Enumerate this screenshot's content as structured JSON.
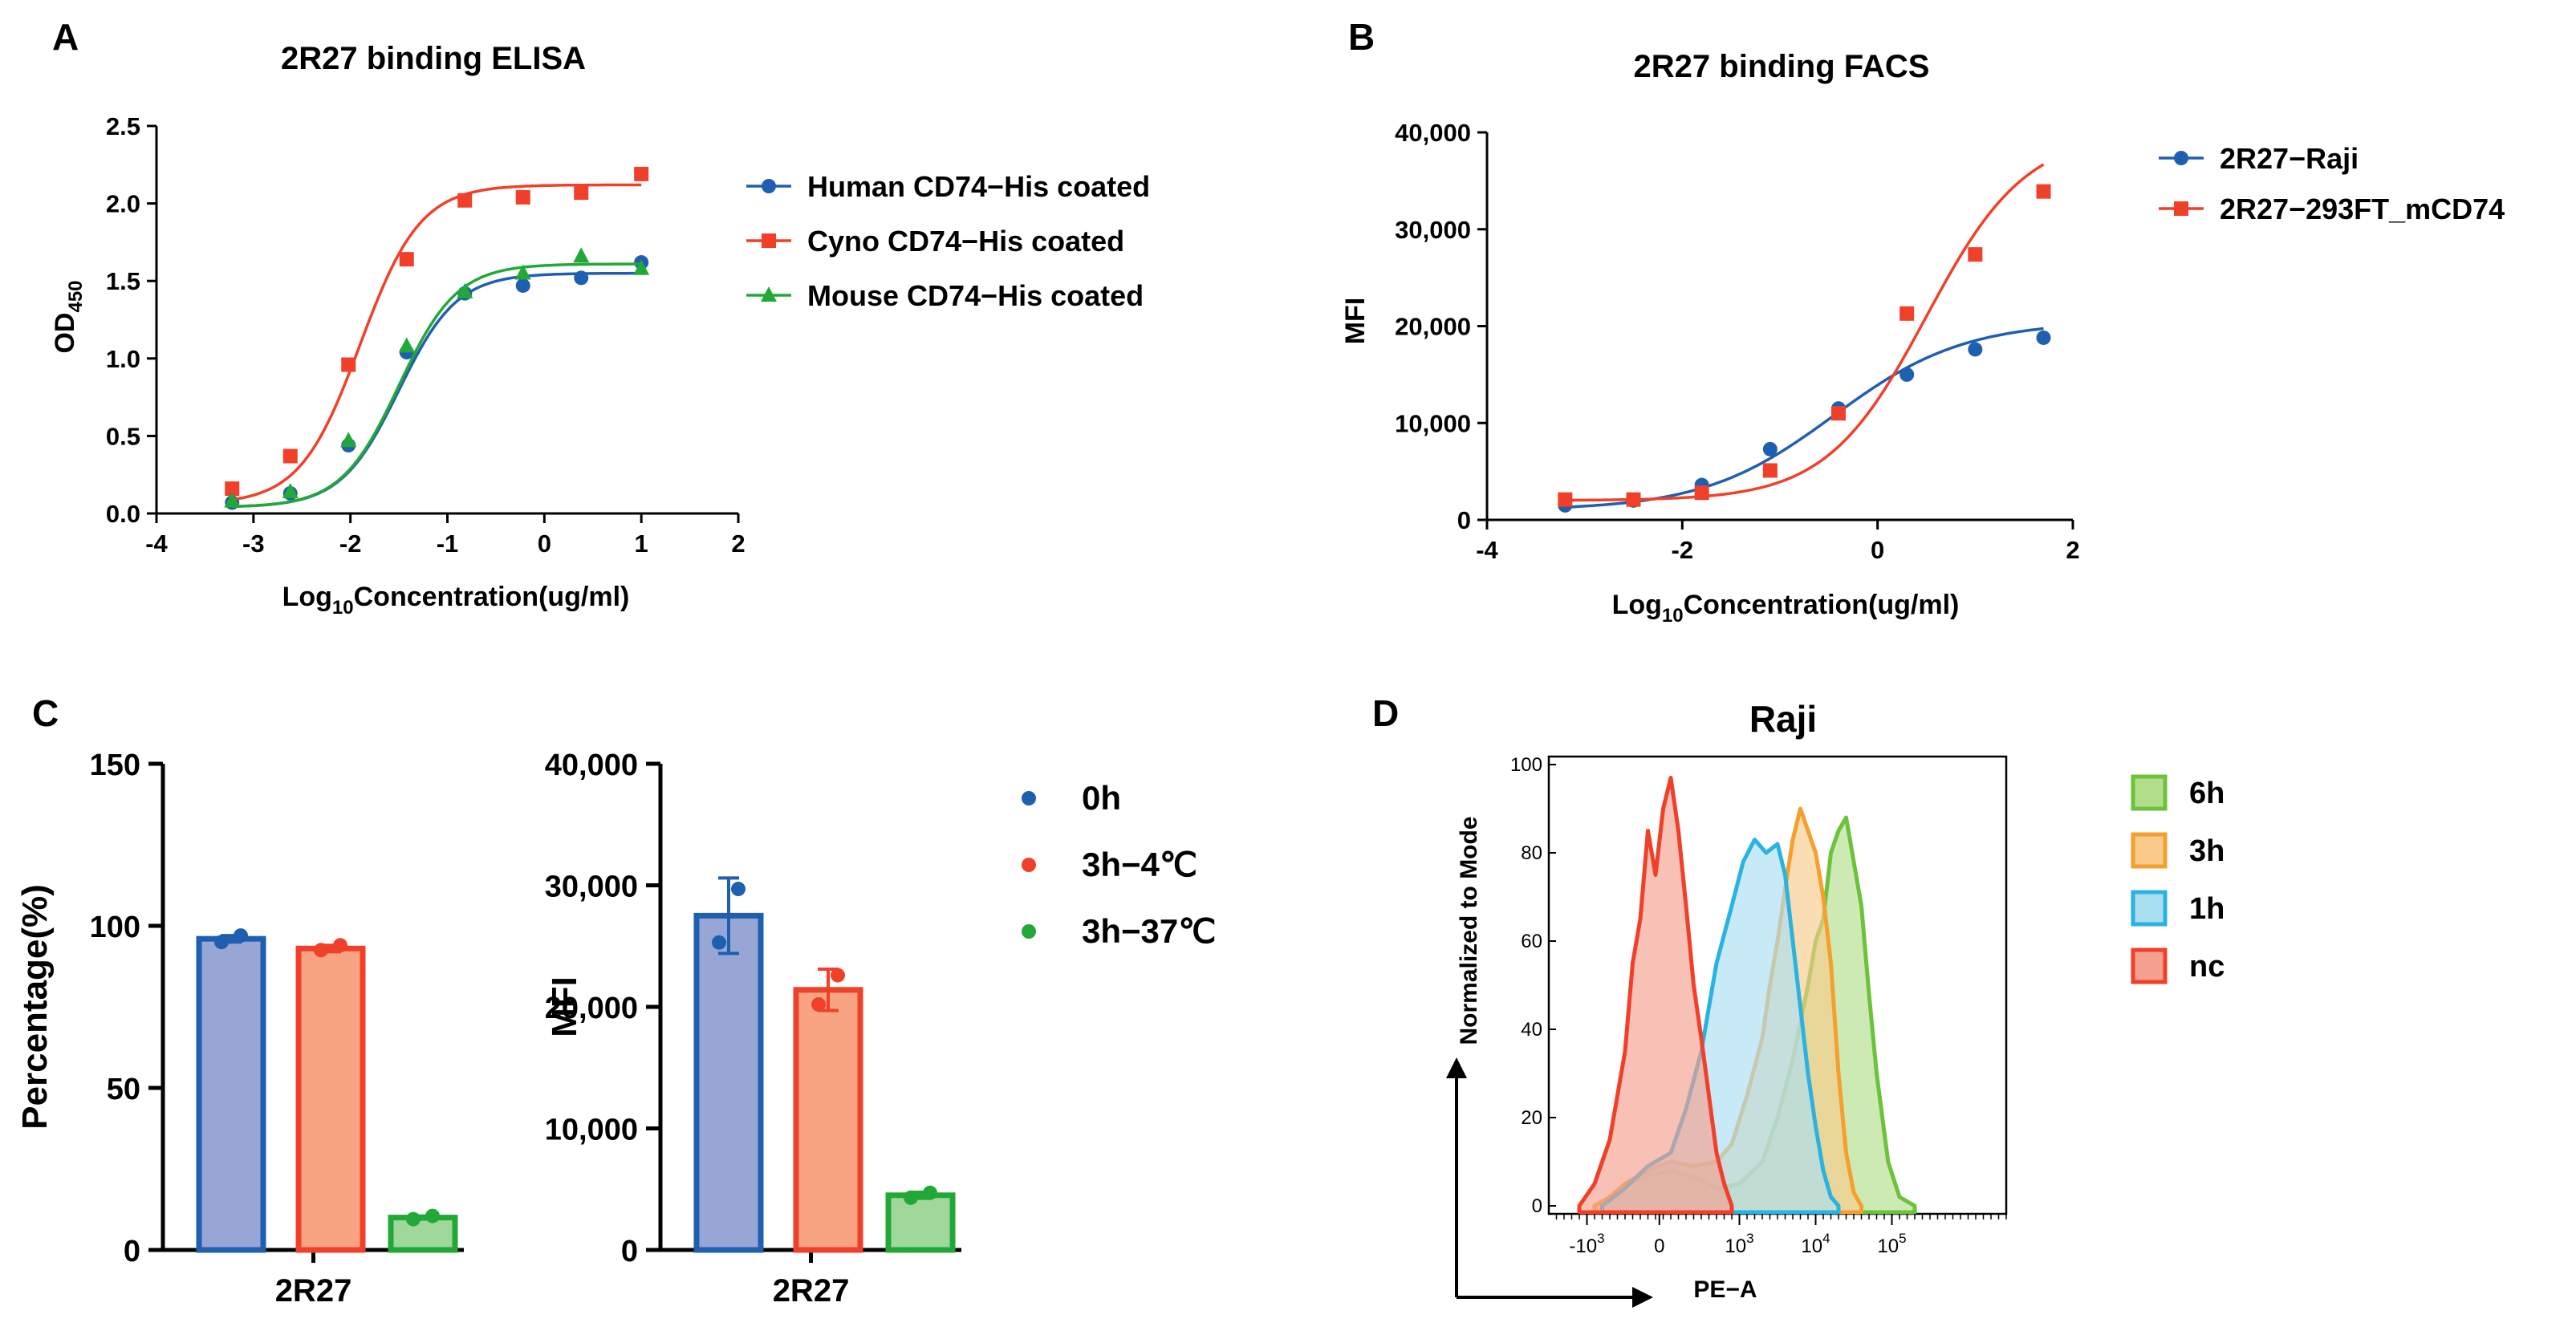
{
  "chart_data": [
    {
      "panel": "A",
      "type": "line",
      "title": "2R27 binding ELISA",
      "xlabel": {
        "pre": "Log",
        "sub": "10",
        "post": "Concentration(ug/ml)"
      },
      "ylabel": {
        "pre": "OD",
        "sub": "450"
      },
      "xlim": [
        -4,
        2
      ],
      "ylim": [
        0,
        2.5
      ],
      "xticks": [
        "-4",
        "-3",
        "-2",
        "-1",
        "0",
        "1",
        "2"
      ],
      "yticks": [
        "0.0",
        "0.5",
        "1.0",
        "1.5",
        "2.0",
        "2.5"
      ],
      "legend_position": "right",
      "series": [
        {
          "name": "Human CD74−His coated",
          "color": "#1f5fb0",
          "marker": "circle",
          "x": [
            -3.22,
            -2.62,
            -2.02,
            -1.42,
            -0.82,
            -0.22,
            0.38,
            1.0
          ],
          "y": [
            0.07,
            0.13,
            0.44,
            1.04,
            1.42,
            1.47,
            1.52,
            1.62
          ],
          "fit": {
            "bottom": 0.04,
            "top": 1.55,
            "ec50": -1.5,
            "hill": 1.45
          }
        },
        {
          "name": "Cyno CD74−His coated",
          "color": "#f0402a",
          "marker": "square",
          "x": [
            -3.22,
            -2.62,
            -2.02,
            -1.42,
            -0.82,
            -0.22,
            0.38,
            1.0
          ],
          "y": [
            0.16,
            0.37,
            0.96,
            1.64,
            2.02,
            2.04,
            2.07,
            2.19
          ],
          "fit": {
            "bottom": 0.06,
            "top": 2.12,
            "ec50": -1.9,
            "hill": 1.4
          }
        },
        {
          "name": "Mouse CD74−His coated",
          "color": "#22a837",
          "marker": "triangle",
          "x": [
            -3.22,
            -2.62,
            -2.02,
            -1.42,
            -0.82,
            -0.22,
            0.38,
            1.0
          ],
          "y": [
            0.08,
            0.14,
            0.47,
            1.08,
            1.43,
            1.55,
            1.66,
            1.58
          ],
          "fit": {
            "bottom": 0.04,
            "top": 1.61,
            "ec50": -1.5,
            "hill": 1.45
          }
        }
      ]
    },
    {
      "panel": "B",
      "type": "line",
      "title": "2R27 binding FACS",
      "xlabel": {
        "pre": "Log",
        "sub": "10",
        "post": "Concentration(ug/ml)"
      },
      "ylabel": {
        "pre": "MFI",
        "sub": ""
      },
      "xlim": [
        -4,
        2
      ],
      "ylim": [
        0,
        40000
      ],
      "xticks": [
        "-4",
        "-2",
        "0",
        "2"
      ],
      "yticks": [
        "0",
        "10,000",
        "20,000",
        "30,000",
        "40,000"
      ],
      "legend_position": "right",
      "series": [
        {
          "name": "2R27−Raji",
          "color": "#1f5fb0",
          "marker": "circle",
          "x": [
            -3.2,
            -2.5,
            -1.8,
            -1.1,
            -0.4,
            0.3,
            1.0,
            1.7
          ],
          "y": [
            1500,
            2000,
            3600,
            7300,
            11500,
            15000,
            17600,
            18800
          ],
          "fit": {
            "bottom": 1000,
            "top": 20500,
            "ec50": -0.45,
            "hill": 0.65
          }
        },
        {
          "name": "2R27−293FT_mCD74",
          "color": "#f0402a",
          "marker": "square",
          "x": [
            -3.2,
            -2.5,
            -1.8,
            -1.1,
            -0.4,
            0.3,
            1.0,
            1.7
          ],
          "y": [
            2100,
            2100,
            2800,
            5100,
            11000,
            21300,
            27400,
            33900
          ],
          "fit": {
            "bottom": 2000,
            "top": 40000,
            "ec50": 0.5,
            "hill": 0.85
          }
        }
      ]
    },
    {
      "panel": "C",
      "type": "bar",
      "ylabel": "Percentage(%)",
      "categories": [
        "2R27"
      ],
      "ylim": [
        0,
        150
      ],
      "yticks": [
        "0",
        "50",
        "100",
        "150"
      ],
      "series": [
        {
          "name": "0h",
          "values": [
            96
          ],
          "points": [
            95,
            97
          ],
          "err": 1
        },
        {
          "name": "3h−4℃",
          "values": [
            93
          ],
          "points": [
            92.5,
            94
          ],
          "err": 1
        },
        {
          "name": "3h−37℃",
          "values": [
            10
          ],
          "points": [
            9.5,
            10.5
          ],
          "err": 0.5
        }
      ]
    },
    {
      "panel": "C",
      "type": "bar",
      "ylabel": "MFI",
      "categories": [
        "2R27"
      ],
      "ylim": [
        0,
        40000
      ],
      "yticks": [
        "0",
        "10,000",
        "20,000",
        "30,000",
        "40,000"
      ],
      "series": [
        {
          "name": "0h",
          "values": [
            27500
          ],
          "points": [
            25300,
            29700
          ],
          "err": 3100
        },
        {
          "name": "3h−4℃",
          "values": [
            21400
          ],
          "points": [
            20200,
            22600
          ],
          "err": 1700
        },
        {
          "name": "3h−37℃",
          "values": [
            4500
          ],
          "points": [
            4300,
            4700
          ],
          "err": 250
        }
      ],
      "legend": [
        {
          "label": "0h",
          "color": "#1f5fb0"
        },
        {
          "label": "3h−4℃",
          "color": "#f0402a"
        },
        {
          "label": "3h−37℃",
          "color": "#22a837"
        }
      ]
    },
    {
      "panel": "D",
      "type": "area",
      "title": "Raji",
      "xlabel": "PE−A",
      "ylabel": "Normalized to Mode",
      "ylim": [
        0,
        100
      ],
      "yticks": [
        "0",
        "20",
        "40",
        "60",
        "80",
        "100"
      ],
      "xticks": [
        {
          "base": "-10",
          "exp": "3"
        },
        {
          "base": "0",
          "exp": ""
        },
        {
          "base": "10",
          "exp": "3"
        },
        {
          "base": "10",
          "exp": "4"
        },
        {
          "base": "10",
          "exp": "5"
        }
      ],
      "series": [
        {
          "name": "6h",
          "color": "#6cc23a",
          "fill": "#b2de8c",
          "points": [
            [
              -0.4,
              0
            ],
            [
              -0.2,
              2
            ],
            [
              0,
              5
            ],
            [
              0.3,
              7
            ],
            [
              0.6,
              8
            ],
            [
              1.0,
              6
            ],
            [
              1.2,
              4
            ],
            [
              1.5,
              5
            ],
            [
              1.8,
              10
            ],
            [
              2.0,
              20
            ],
            [
              2.2,
              33
            ],
            [
              2.4,
              50
            ],
            [
              2.5,
              60
            ],
            [
              2.6,
              65
            ],
            [
              2.7,
              80
            ],
            [
              2.8,
              85
            ],
            [
              2.9,
              88
            ],
            [
              3.0,
              78
            ],
            [
              3.1,
              68
            ],
            [
              3.2,
              48
            ],
            [
              3.3,
              30
            ],
            [
              3.45,
              10
            ],
            [
              3.6,
              2
            ],
            [
              3.8,
              0
            ]
          ]
        },
        {
          "name": "3h",
          "color": "#f5a02e",
          "fill": "#f8cb8a",
          "points": [
            [
              -0.4,
              0
            ],
            [
              -0.2,
              2
            ],
            [
              0,
              5
            ],
            [
              0.3,
              8
            ],
            [
              0.6,
              10
            ],
            [
              0.9,
              9
            ],
            [
              1.2,
              10
            ],
            [
              1.4,
              14
            ],
            [
              1.6,
              25
            ],
            [
              1.8,
              38
            ],
            [
              1.9,
              50
            ],
            [
              2.0,
              60
            ],
            [
              2.1,
              72
            ],
            [
              2.2,
              83
            ],
            [
              2.3,
              90
            ],
            [
              2.4,
              85
            ],
            [
              2.5,
              80
            ],
            [
              2.6,
              70
            ],
            [
              2.7,
              55
            ],
            [
              2.8,
              30
            ],
            [
              2.9,
              12
            ],
            [
              3.0,
              3
            ],
            [
              3.1,
              0
            ]
          ]
        },
        {
          "name": "1h",
          "color": "#2ab3e0",
          "fill": "#aadff2",
          "points": [
            [
              -0.3,
              0
            ],
            [
              0,
              4
            ],
            [
              0.3,
              9
            ],
            [
              0.6,
              12
            ],
            [
              0.8,
              22
            ],
            [
              1.0,
              35
            ],
            [
              1.2,
              55
            ],
            [
              1.4,
              68
            ],
            [
              1.55,
              78
            ],
            [
              1.7,
              83
            ],
            [
              1.85,
              80
            ],
            [
              2.0,
              82
            ],
            [
              2.1,
              75
            ],
            [
              2.2,
              60
            ],
            [
              2.3,
              45
            ],
            [
              2.4,
              30
            ],
            [
              2.5,
              18
            ],
            [
              2.6,
              8
            ],
            [
              2.7,
              2
            ],
            [
              2.8,
              0
            ]
          ]
        },
        {
          "name": "nc",
          "color": "#f0402a",
          "fill": "#f5a08f",
          "points": [
            [
              -0.6,
              0
            ],
            [
              -0.4,
              5
            ],
            [
              -0.2,
              15
            ],
            [
              0,
              35
            ],
            [
              0.1,
              55
            ],
            [
              0.2,
              65
            ],
            [
              0.3,
              85
            ],
            [
              0.4,
              75
            ],
            [
              0.5,
              90
            ],
            [
              0.6,
              97
            ],
            [
              0.7,
              85
            ],
            [
              0.8,
              68
            ],
            [
              0.9,
              50
            ],
            [
              1.0,
              38
            ],
            [
              1.1,
              25
            ],
            [
              1.2,
              12
            ],
            [
              1.3,
              5
            ],
            [
              1.4,
              0
            ]
          ]
        }
      ]
    }
  ],
  "panel_labels": {
    "A": "A",
    "B": "B",
    "C": "C",
    "D": "D"
  }
}
